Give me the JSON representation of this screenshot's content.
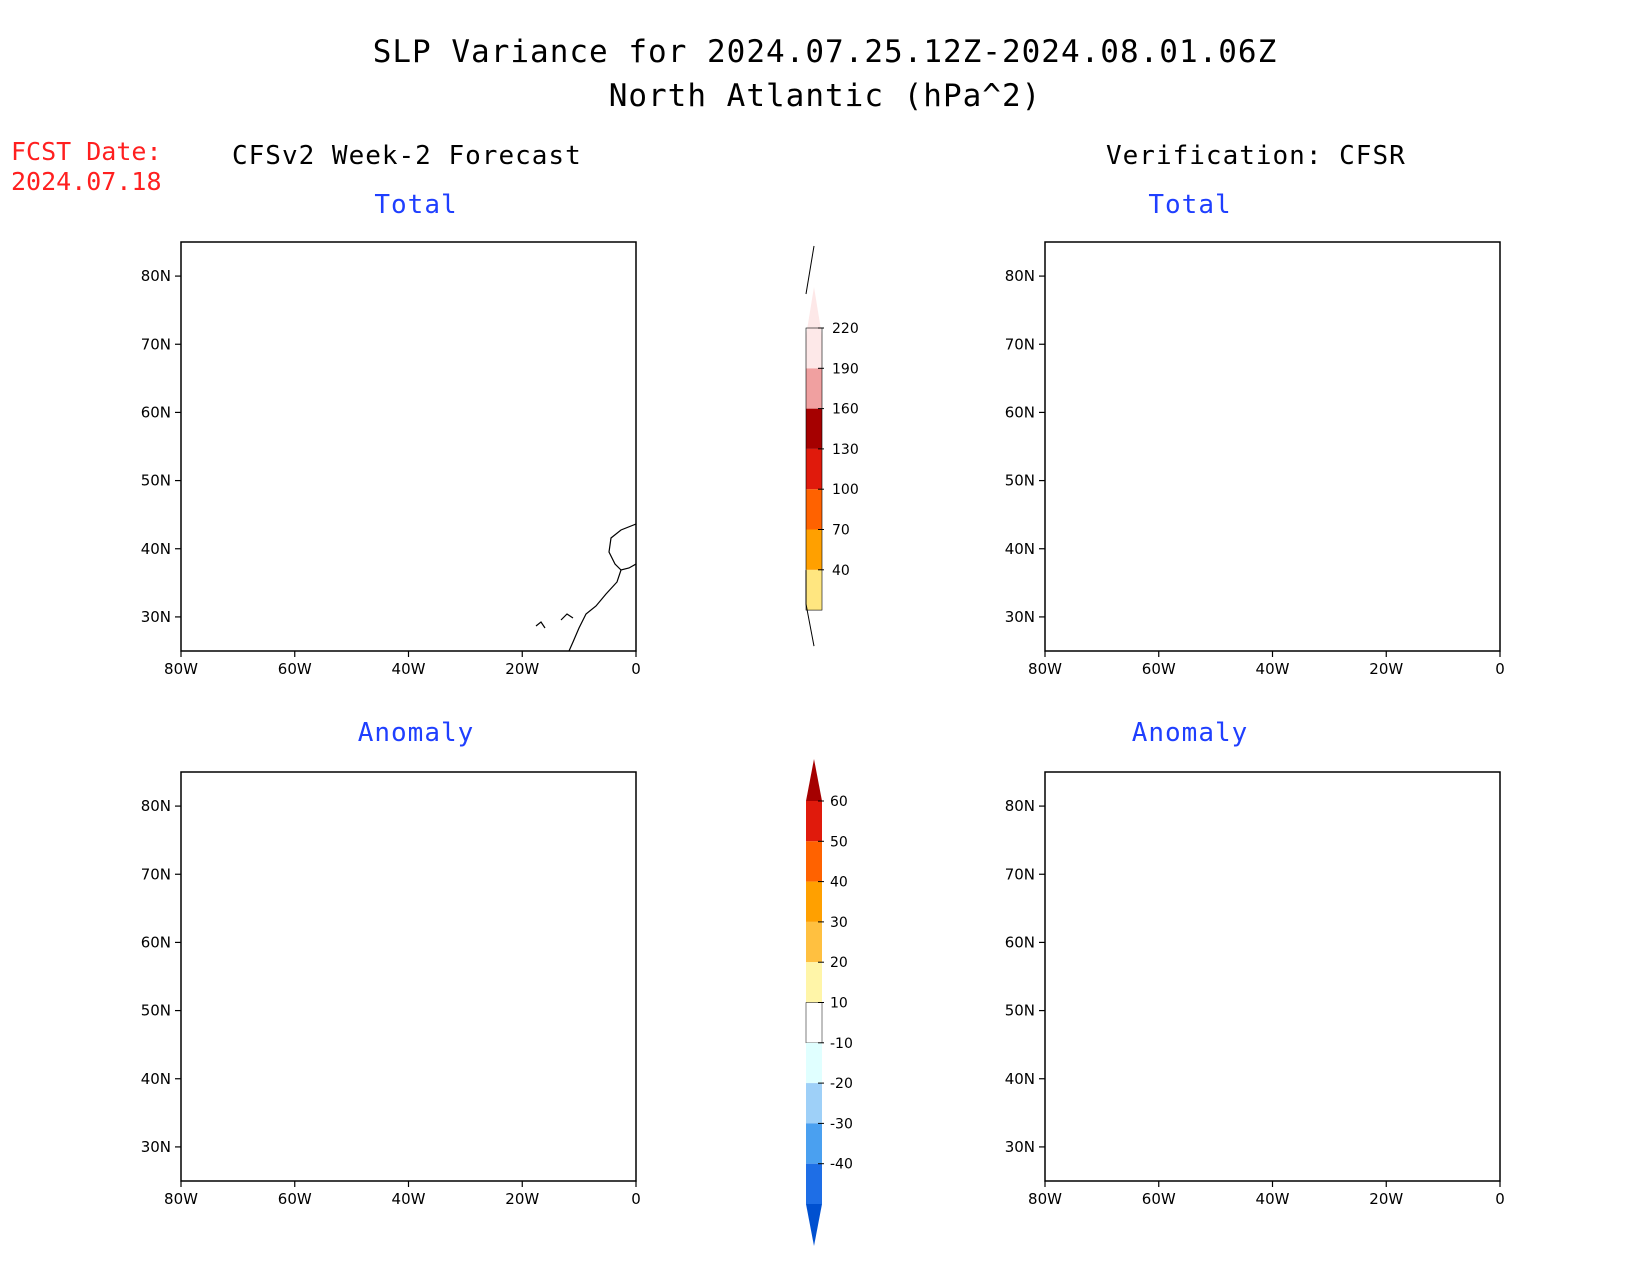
{
  "title": {
    "line1": "SLP Variance for 2024.07.25.12Z-2024.08.01.06Z",
    "line2": "North Atlantic (hPa^2)"
  },
  "forecast_date": {
    "label": "FCST Date:",
    "value": "2024.07.18"
  },
  "columns": {
    "left": "CFSv2 Week-2 Forecast",
    "right": "Verification: CFSR"
  },
  "panels": {
    "total": "Total",
    "anomaly": "Anomaly"
  },
  "axes": {
    "lat_labels": [
      "80N",
      "70N",
      "60N",
      "50N",
      "40N",
      "30N"
    ],
    "lat_values": [
      80,
      70,
      60,
      50,
      40,
      30
    ],
    "lon_labels": [
      "80W",
      "60W",
      "40W",
      "20W",
      "0"
    ],
    "lon_values": [
      -80,
      -60,
      -40,
      -20,
      0
    ],
    "lat_range": [
      25,
      85
    ],
    "lon_range": [
      -80,
      0
    ]
  },
  "colorbars": {
    "total": {
      "labels": [
        "40",
        "70",
        "100",
        "130",
        "160",
        "190",
        "220"
      ],
      "colors": [
        "#ffe680",
        "#ffa000",
        "#ff6200",
        "#e01a0c",
        "#a50000",
        "#f0a0a0",
        "#fde8e8"
      ]
    },
    "anomaly": {
      "labels": [
        "60",
        "50",
        "40",
        "30",
        "20",
        "10",
        "-10",
        "-20",
        "-30",
        "-40"
      ],
      "colors_top_to_bottom": [
        "#a50000",
        "#e01a0c",
        "#ff6200",
        "#ffa000",
        "#ffc040",
        "#fff5a8",
        "#ffffff",
        "#e0ffff",
        "#9ed0f8",
        "#4aa0f0",
        "#1e6ee6",
        "#0050d0"
      ]
    }
  }
}
